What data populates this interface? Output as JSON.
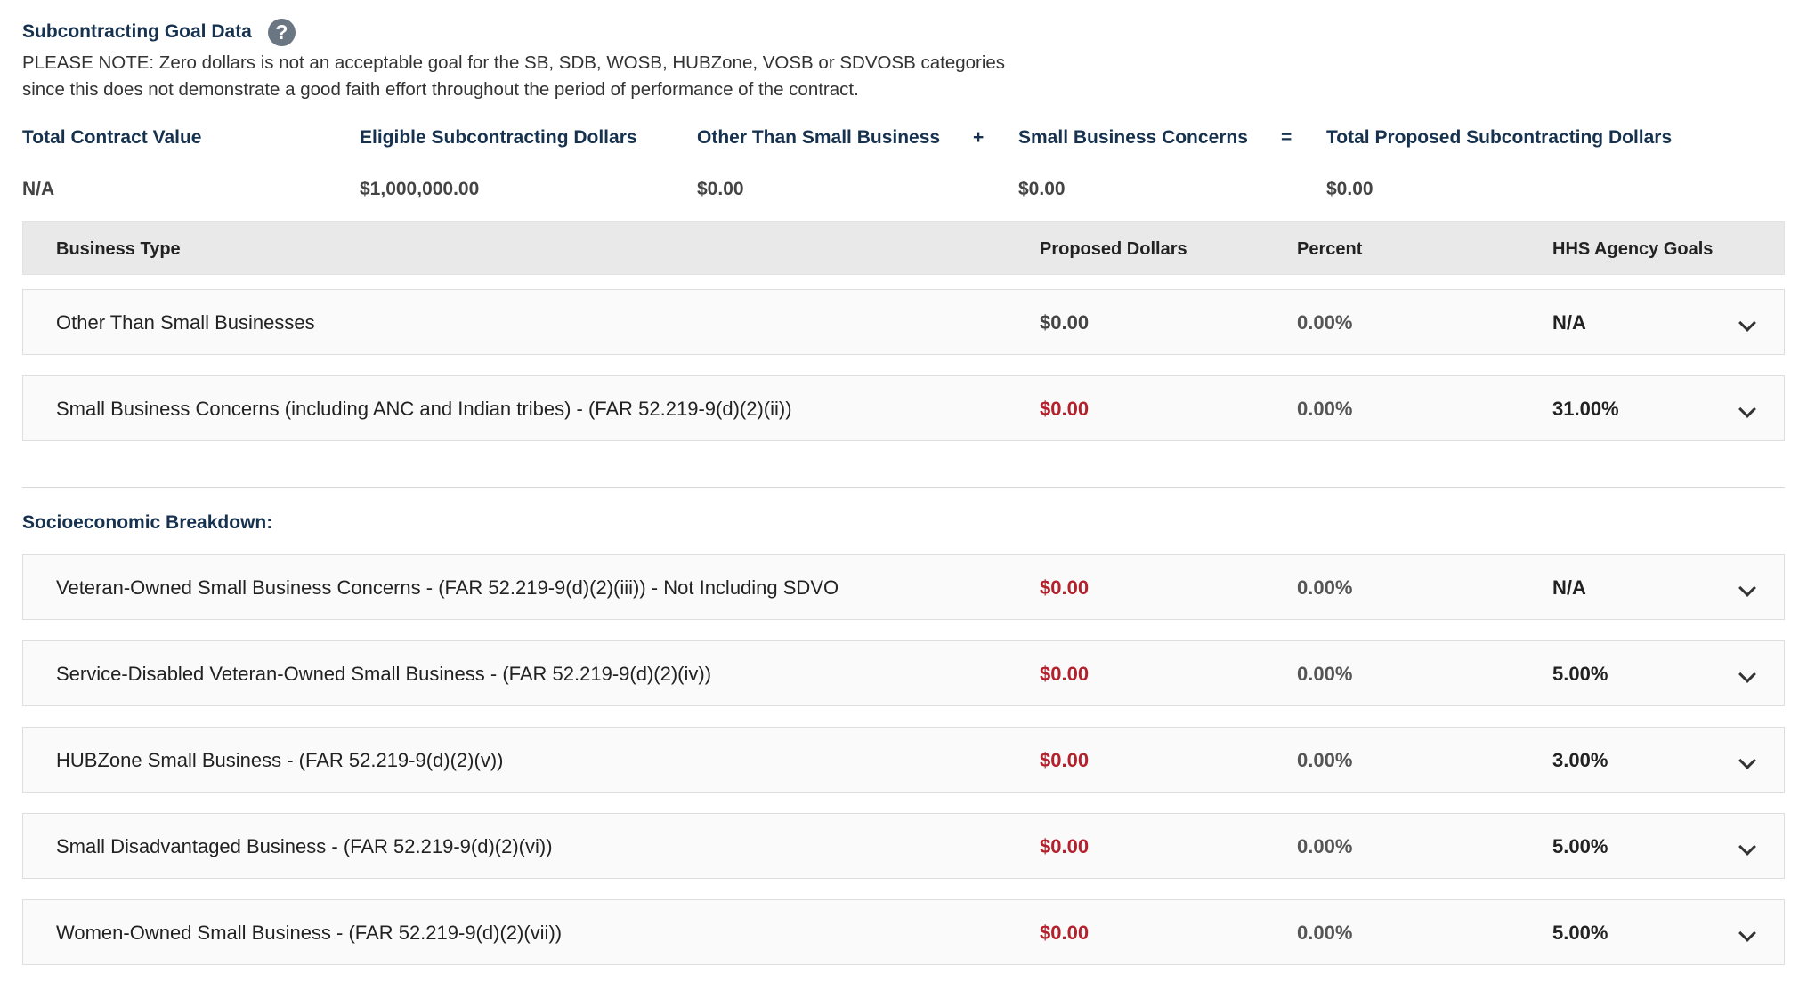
{
  "header": {
    "title": "Subcontracting Goal Data",
    "help_icon": "question-circle-icon",
    "note_line1": "PLEASE NOTE: Zero dollars is not an acceptable goal for the SB, SDB, WOSB, HUBZone, VOSB or SDVOSB categories",
    "note_line2": "since this does not demonstrate a good faith effort throughout the period of performance of the contract."
  },
  "summary": {
    "labels": {
      "total_contract_value": "Total Contract Value",
      "eligible": "Eligible Subcontracting Dollars",
      "other_than_small": "Other Than Small Business",
      "plus": "+",
      "small_business": "Small Business Concerns",
      "equals": "=",
      "total_proposed": "Total Proposed Subcontracting Dollars"
    },
    "values": {
      "total_contract_value": "N/A",
      "eligible": "$1,000,000.00",
      "other_than_small": "$0.00",
      "small_business": "$0.00",
      "total_proposed": "$0.00"
    }
  },
  "table": {
    "headers": {
      "business_type": "Business Type",
      "proposed_dollars": "Proposed Dollars",
      "percent": "Percent",
      "agency_goals": "HHS Agency Goals"
    },
    "rows": [
      {
        "name": "Other Than Small Businesses",
        "dollars": "$0.00",
        "percent": "0.00%",
        "goal": "N/A"
      },
      {
        "name": "Small Business Concerns (including ANC and Indian tribes) - (FAR 52.219-9(d)(2)(ii))",
        "dollars": "$0.00",
        "percent": "0.00%",
        "goal": "31.00%"
      }
    ]
  },
  "socioeconomic": {
    "title": "Socioeconomic Breakdown:",
    "rows": [
      {
        "name": "Veteran-Owned Small Business Concerns - (FAR 52.219-9(d)(2)(iii)) - Not Including SDVO",
        "dollars": "$0.00",
        "percent": "0.00%",
        "goal": "N/A"
      },
      {
        "name": "Service-Disabled Veteran-Owned Small Business - (FAR 52.219-9(d)(2)(iv))",
        "dollars": "$0.00",
        "percent": "0.00%",
        "goal": "5.00%"
      },
      {
        "name": "HUBZone Small Business - (FAR 52.219-9(d)(2)(v))",
        "dollars": "$0.00",
        "percent": "0.00%",
        "goal": "3.00%"
      },
      {
        "name": "Small Disadvantaged Business - (FAR 52.219-9(d)(2)(vi))",
        "dollars": "$0.00",
        "percent": "0.00%",
        "goal": "5.00%"
      },
      {
        "name": "Women-Owned Small Business - (FAR 52.219-9(d)(2)(vii))",
        "dollars": "$0.00",
        "percent": "0.00%",
        "goal": "5.00%"
      }
    ]
  },
  "colors": {
    "heading": "#16324f",
    "warning_red": "#b3212d",
    "header_bg": "#e9e9e9"
  },
  "icons": {
    "expand": "chevron-down-icon"
  }
}
